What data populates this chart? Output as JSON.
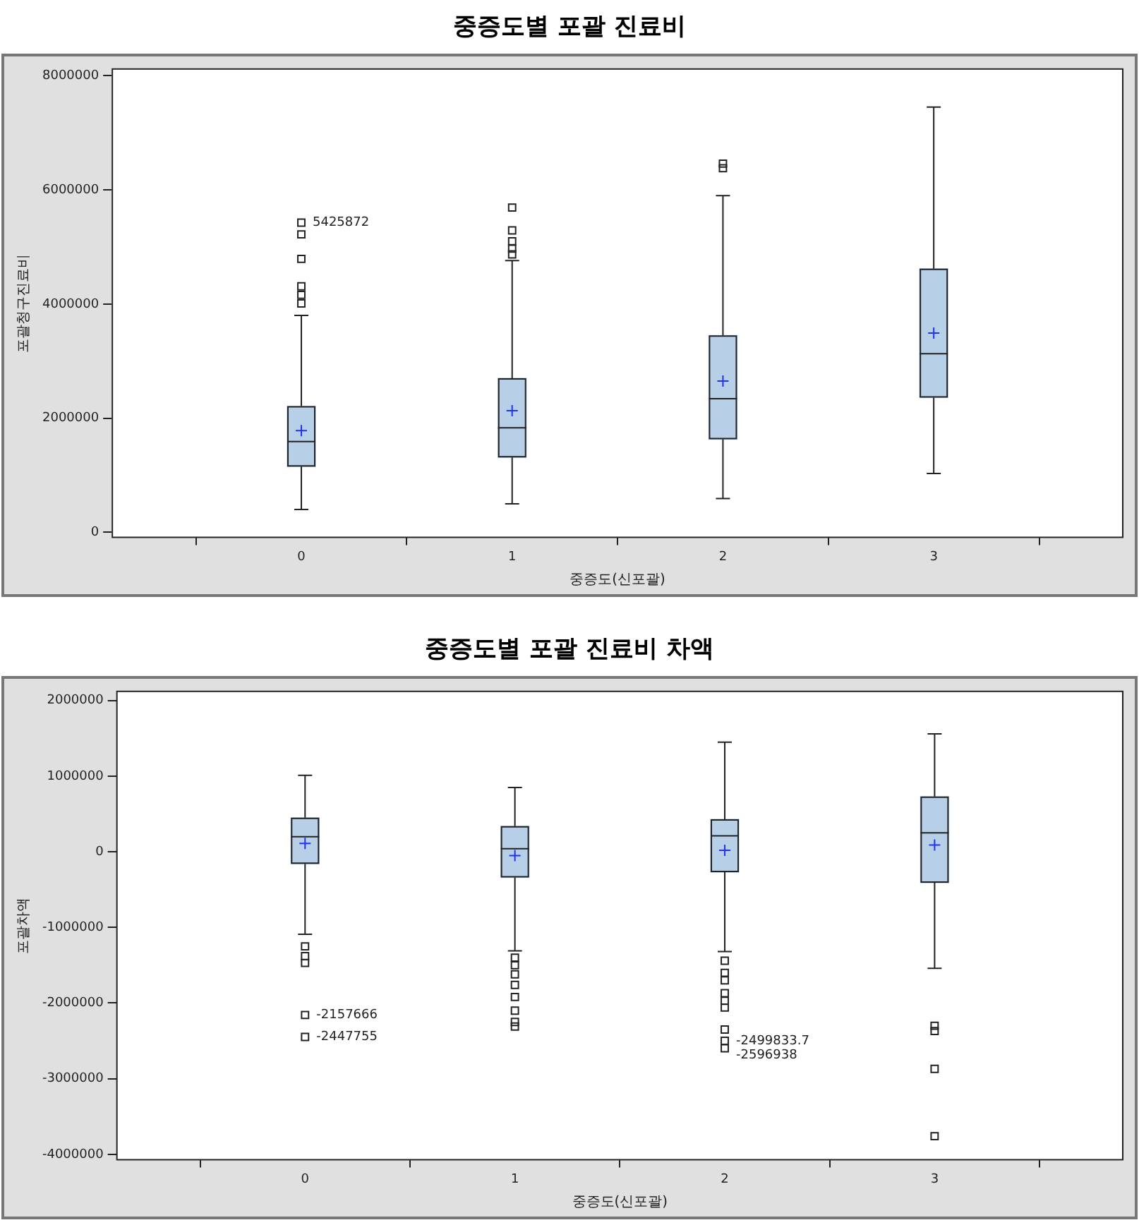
{
  "chart_data": [
    {
      "type": "box",
      "title": "중증도별 포괄 진료비",
      "xlabel": "중증도(신포괄)",
      "ylabel": "포괄청구진료비",
      "categories": [
        "0",
        "1",
        "2",
        "3"
      ],
      "series": [
        {
          "color": "#b8cfe8",
          "boxes": [
            {
              "low": 400000,
              "q1": 1150000,
              "median": 1590000,
              "q3": 2210000,
              "high": 3800000,
              "mean": 1780000
            },
            {
              "low": 500000,
              "q1": 1310000,
              "median": 1830000,
              "q3": 2700000,
              "high": 4760000,
              "mean": 2130000
            },
            {
              "low": 590000,
              "q1": 1630000,
              "median": 2340000,
              "q3": 3450000,
              "high": 5900000,
              "mean": 2650000
            },
            {
              "low": 1030000,
              "q1": 2360000,
              "median": 3130000,
              "q3": 4620000,
              "high": 7450000,
              "mean": 3490000
            }
          ]
        },
        {
          "type": "scatter",
          "marker": "square",
          "color": "#222222",
          "x": [
            "0",
            "0",
            "0",
            "0",
            "0",
            "0",
            "1",
            "1",
            "1",
            "1",
            "1",
            "2",
            "2"
          ],
          "values": [
            5425872,
            5220000,
            4790000,
            4310000,
            4160000,
            4010000,
            5690000,
            5290000,
            5100000,
            4970000,
            4870000,
            6460000,
            6380000
          ]
        }
      ],
      "annotations": [
        {
          "text": "5425872",
          "x": "0",
          "y": 5425872
        }
      ],
      "ylim": [
        -100000,
        8130000
      ],
      "yticks": [
        0,
        2000000,
        4000000,
        6000000,
        8000000
      ]
    },
    {
      "type": "box",
      "title": "중증도별 포괄 진료비 차액",
      "xlabel": "중증도(신포괄)",
      "ylabel": "포괄차액",
      "categories": [
        "0",
        "1",
        "2",
        "3"
      ],
      "series": [
        {
          "color": "#b8cfe8",
          "boxes": [
            {
              "low": -1090000,
              "q1": -160000,
              "median": 200000,
              "q3": 450000,
              "high": 1010000,
              "mean": 110000
            },
            {
              "low": -1310000,
              "q1": -340000,
              "median": 40000,
              "q3": 340000,
              "high": 850000,
              "mean": -50000
            },
            {
              "low": -1320000,
              "q1": -270000,
              "median": 210000,
              "q3": 430000,
              "high": 1450000,
              "mean": 20000
            },
            {
              "low": -1540000,
              "q1": -410000,
              "median": 250000,
              "q3": 730000,
              "high": 1560000,
              "mean": 90000
            }
          ]
        },
        {
          "type": "scatter",
          "marker": "square",
          "color": "#222222",
          "x": [
            "0",
            "0",
            "0",
            "0",
            "0",
            "1",
            "1",
            "1",
            "1",
            "1",
            "1",
            "1",
            "1",
            "2",
            "2",
            "2",
            "2",
            "2",
            "2",
            "2",
            "2",
            "2",
            "3",
            "3",
            "3",
            "3"
          ],
          "values": [
            -1250000,
            -1380000,
            -1470000,
            -2157666,
            -2447755,
            -1400000,
            -1500000,
            -1620000,
            -1760000,
            -1920000,
            -2100000,
            -2250000,
            -2310000,
            -1440000,
            -1600000,
            -1700000,
            -1870000,
            -1970000,
            -2060000,
            -2350000,
            -2499833.7,
            -2596938,
            -2300000,
            -2370000,
            -2870000,
            -3760000
          ]
        }
      ],
      "annotations": [
        {
          "text": "-2157666",
          "x": "0",
          "y": -2157666
        },
        {
          "text": "-2447755",
          "x": "0",
          "y": -2447755
        },
        {
          "text": "-2499833.7",
          "x": "2",
          "y": -2499833.7
        },
        {
          "text": "-2596938",
          "x": "2",
          "y": -2596938
        }
      ],
      "ylim": [
        -4080000,
        2130000
      ],
      "yticks": [
        -4000000,
        -3000000,
        -2000000,
        -1000000,
        0,
        1000000,
        2000000
      ]
    }
  ]
}
